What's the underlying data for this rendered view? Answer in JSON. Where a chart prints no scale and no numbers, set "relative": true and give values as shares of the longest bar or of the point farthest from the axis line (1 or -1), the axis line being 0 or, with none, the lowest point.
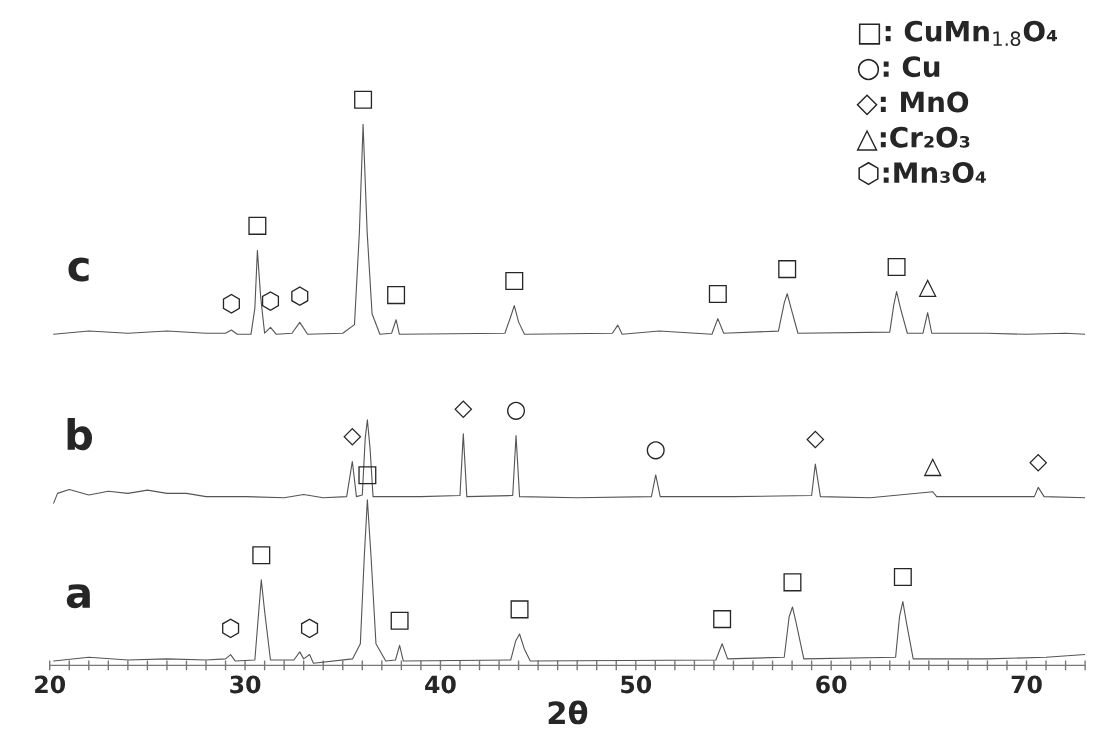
{
  "chart_data": {
    "type": "line",
    "relative": true,
    "xlabel": "2θ",
    "xlim": [
      20,
      73
    ],
    "xticks": [
      20,
      {
        "value": 21,
        "label": null
      },
      {
        "value": 22,
        "label": null
      },
      {
        "value": 23,
        "label": null
      },
      {
        "value": 24,
        "label": null
      },
      {
        "value": 25,
        "label": null
      },
      {
        "value": 26,
        "label": null
      },
      {
        "value": 27,
        "label": null
      },
      {
        "value": 28,
        "label": null
      },
      {
        "value": 29,
        "label": null
      },
      30,
      {
        "value": 31,
        "label": null
      },
      {
        "value": 32,
        "label": null
      },
      {
        "value": 33,
        "label": null
      },
      {
        "value": 34,
        "label": null
      },
      {
        "value": 35,
        "label": null
      },
      {
        "value": 36,
        "label": null
      },
      {
        "value": 37,
        "label": null
      },
      {
        "value": 38,
        "label": null
      },
      {
        "value": 39,
        "label": null
      },
      40,
      {
        "value": 41,
        "label": null
      },
      {
        "value": 42,
        "label": null
      },
      {
        "value": 43,
        "label": null
      },
      {
        "value": 44,
        "label": null
      },
      {
        "value": 45,
        "label": null
      },
      {
        "value": 46,
        "label": null
      },
      {
        "value": 47,
        "label": null
      },
      {
        "value": 48,
        "label": null
      },
      {
        "value": 49,
        "label": null
      },
      50,
      {
        "value": 51,
        "label": null
      },
      {
        "value": 52,
        "label": null
      },
      {
        "value": 53,
        "label": null
      },
      {
        "value": 54,
        "label": null
      },
      {
        "value": 55,
        "label": null
      },
      {
        "value": 56,
        "label": null
      },
      {
        "value": 57,
        "label": null
      },
      {
        "value": 58,
        "label": null
      },
      {
        "value": 59,
        "label": null
      },
      60,
      {
        "value": 61,
        "label": null
      },
      {
        "value": 62,
        "label": null
      },
      {
        "value": 63,
        "label": null
      },
      {
        "value": 64,
        "label": null
      },
      {
        "value": 65,
        "label": null
      },
      {
        "value": 66,
        "label": null
      },
      {
        "value": 67,
        "label": null
      },
      {
        "value": 68,
        "label": null
      },
      {
        "value": 69,
        "label": null
      },
      70,
      {
        "value": 71,
        "label": null
      },
      {
        "value": 72,
        "label": null
      },
      {
        "value": 73,
        "label": null
      }
    ],
    "tick_labels": "x",
    "grid": false,
    "marker": "none",
    "line_style": "solid",
    "series": [
      {
        "name": "c",
        "color": "#555555",
        "x": [
          20.2,
          22,
          24,
          26,
          28,
          29.0,
          29.3,
          29.6,
          30.3,
          30.5,
          30.63,
          30.8,
          31.0,
          31.3,
          31.6,
          32.4,
          32.8,
          33.2,
          35.0,
          35.6,
          35.85,
          36.04,
          36.25,
          36.5,
          36.9,
          37.5,
          37.73,
          37.9,
          43.3,
          43.6,
          43.78,
          44.0,
          44.3,
          48.8,
          49.08,
          49.3,
          51.2,
          53.9,
          54.2,
          54.5,
          57.3,
          57.6,
          57.75,
          57.95,
          58.3,
          63.0,
          63.2,
          63.35,
          63.55,
          63.9,
          64.7,
          64.94,
          65.15,
          68,
          70,
          72,
          73
        ],
        "values": [
          0.612,
          0.618,
          0.614,
          0.618,
          0.614,
          0.614,
          0.62,
          0.612,
          0.612,
          0.66,
          0.767,
          0.68,
          0.614,
          0.625,
          0.612,
          0.614,
          0.634,
          0.612,
          0.614,
          0.63,
          0.8,
          1.0,
          0.8,
          0.65,
          0.612,
          0.614,
          0.639,
          0.612,
          0.614,
          0.645,
          0.665,
          0.635,
          0.612,
          0.614,
          0.629,
          0.612,
          0.618,
          0.612,
          0.641,
          0.614,
          0.618,
          0.67,
          0.687,
          0.66,
          0.614,
          0.616,
          0.665,
          0.691,
          0.66,
          0.614,
          0.614,
          0.652,
          0.614,
          0.614,
          0.612,
          0.614,
          0.612
        ]
      },
      {
        "name": "b",
        "color": "#555555",
        "x": [
          20.2,
          20.4,
          21,
          22,
          23,
          24,
          25,
          26,
          27,
          28,
          30,
          32,
          33,
          34,
          35.2,
          35.49,
          35.7,
          36.0,
          36.15,
          36.26,
          36.4,
          36.55,
          39,
          41.0,
          41.17,
          41.35,
          43.7,
          43.87,
          44.05,
          47,
          50.8,
          51.02,
          51.25,
          55,
          59.0,
          59.19,
          59.45,
          62,
          65.2,
          65.4,
          70.4,
          70.6,
          70.9,
          73
        ],
        "values": [
          0.3,
          0.318,
          0.325,
          0.315,
          0.322,
          0.318,
          0.324,
          0.318,
          0.318,
          0.312,
          0.312,
          0.31,
          0.316,
          0.31,
          0.312,
          0.377,
          0.312,
          0.315,
          0.42,
          0.454,
          0.4,
          0.312,
          0.312,
          0.314,
          0.428,
          0.312,
          0.314,
          0.425,
          0.312,
          0.31,
          0.312,
          0.352,
          0.312,
          0.312,
          0.314,
          0.372,
          0.312,
          0.31,
          0.321,
          0.312,
          0.312,
          0.329,
          0.312,
          0.31
        ]
      },
      {
        "name": "a",
        "color": "#555555",
        "x": [
          20.2,
          22,
          24,
          26,
          28,
          29.0,
          29.26,
          29.5,
          30.5,
          30.7,
          30.83,
          31.0,
          31.3,
          32.5,
          32.8,
          33.0,
          33.3,
          33.5,
          35.5,
          35.9,
          36.1,
          36.26,
          36.45,
          36.7,
          37.2,
          37.7,
          37.91,
          38.1,
          43.6,
          43.85,
          44.05,
          44.3,
          44.6,
          54.1,
          54.42,
          54.7,
          57.6,
          57.85,
          58.02,
          58.2,
          58.6,
          63.3,
          63.5,
          63.67,
          63.85,
          64.2,
          68,
          71,
          73
        ],
        "values": [
          0.008,
          0.015,
          0.01,
          0.012,
          0.01,
          0.012,
          0.02,
          0.008,
          0.01,
          0.1,
          0.158,
          0.1,
          0.01,
          0.01,
          0.025,
          0.012,
          0.02,
          0.004,
          0.012,
          0.04,
          0.2,
          0.306,
          0.2,
          0.04,
          0.008,
          0.01,
          0.037,
          0.008,
          0.01,
          0.045,
          0.058,
          0.03,
          0.008,
          0.01,
          0.04,
          0.012,
          0.015,
          0.09,
          0.108,
          0.08,
          0.012,
          0.015,
          0.09,
          0.118,
          0.08,
          0.012,
          0.012,
          0.015,
          0.02
        ]
      }
    ],
    "annotations": [
      "□: CuMn$_{1.8}$O₄",
      "○: Cu",
      "◇: MnO",
      "△:Cr₂O₃",
      "⬡:Mn₃O₄",
      {
        "text": "⬡",
        "x": 29.3,
        "y": 0.62
      },
      {
        "text": "□",
        "x": 30.63,
        "y": 0.767
      },
      {
        "text": "⬡",
        "x": 31.3,
        "y": 0.625
      },
      {
        "text": "⬡",
        "x": 32.8,
        "y": 0.634
      },
      {
        "text": "□",
        "x": 36.04,
        "y": 1.0
      },
      {
        "text": "□",
        "x": 37.73,
        "y": 0.639
      },
      {
        "text": "□",
        "x": 43.78,
        "y": 0.665
      },
      {
        "text": "□",
        "x": 54.2,
        "y": 0.641
      },
      {
        "text": "□",
        "x": 57.75,
        "y": 0.687
      },
      {
        "text": "□",
        "x": 63.35,
        "y": 0.691
      },
      {
        "text": "△",
        "x": 64.94,
        "y": 0.652
      },
      {
        "text": "◇",
        "x": 35.49,
        "y": 0.377
      },
      {
        "text": "◇",
        "x": 41.17,
        "y": 0.428
      },
      {
        "text": "○",
        "x": 43.87,
        "y": 0.425
      },
      {
        "text": "○",
        "x": 51.02,
        "y": 0.352
      },
      {
        "text": "◇",
        "x": 59.19,
        "y": 0.372
      },
      {
        "text": "△",
        "x": 65.2,
        "y": 0.321
      },
      {
        "text": "◇",
        "x": 70.6,
        "y": 0.329
      },
      {
        "text": "□",
        "x": 36.26,
        "y": 0.306
      },
      {
        "text": "□",
        "x": 30.83,
        "y": 0.158
      },
      {
        "text": "⬡",
        "x": 29.26,
        "y": 0.02
      },
      {
        "text": "⬡",
        "x": 33.3,
        "y": 0.02
      },
      {
        "text": "□",
        "x": 37.91,
        "y": 0.037
      },
      {
        "text": "□",
        "x": 44.05,
        "y": 0.058
      },
      {
        "text": "□",
        "x": 54.42,
        "y": 0.04
      },
      {
        "text": "□",
        "x": 58.02,
        "y": 0.108
      },
      {
        "text": "□",
        "x": 63.67,
        "y": 0.118
      }
    ]
  }
}
